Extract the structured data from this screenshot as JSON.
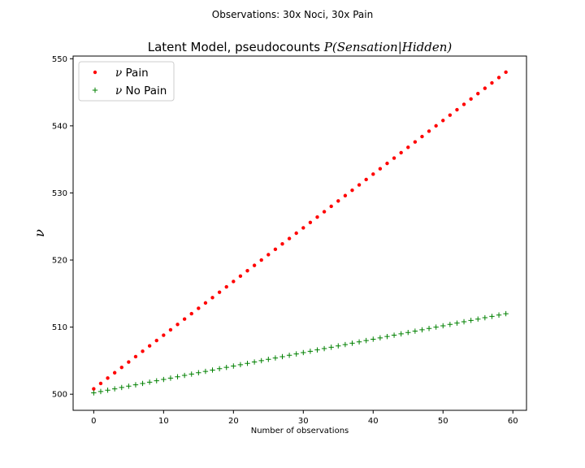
{
  "figure": {
    "suptitle": "Observations: 30x Noci, 30x Pain"
  },
  "chart_data": {
    "type": "scatter",
    "title_prefix": "Latent Model, pseudocounts ",
    "title_math": "P(Sensation|Hidden)",
    "xlabel": "Number of observations",
    "ylabel": "ν",
    "xlim": [
      -2.95,
      61.95
    ],
    "ylim": [
      497.6,
      550.4
    ],
    "xticks": [
      0,
      10,
      20,
      30,
      40,
      50,
      60
    ],
    "yticks": [
      500,
      510,
      520,
      530,
      540,
      550
    ],
    "grid": false,
    "legend": "upper-left",
    "legend_symbol": "ν",
    "series": [
      {
        "name": "Pain",
        "marker": "dot",
        "color": "#ff0000",
        "x_start": 0,
        "x_step": 1,
        "count": 60,
        "y_start": 500.8,
        "y_end": 548.0
      },
      {
        "name": "No Pain",
        "marker": "plus",
        "color": "#008000",
        "x_start": 0,
        "x_step": 1,
        "count": 60,
        "y_start": 500.2,
        "y_end": 512.0
      }
    ]
  }
}
